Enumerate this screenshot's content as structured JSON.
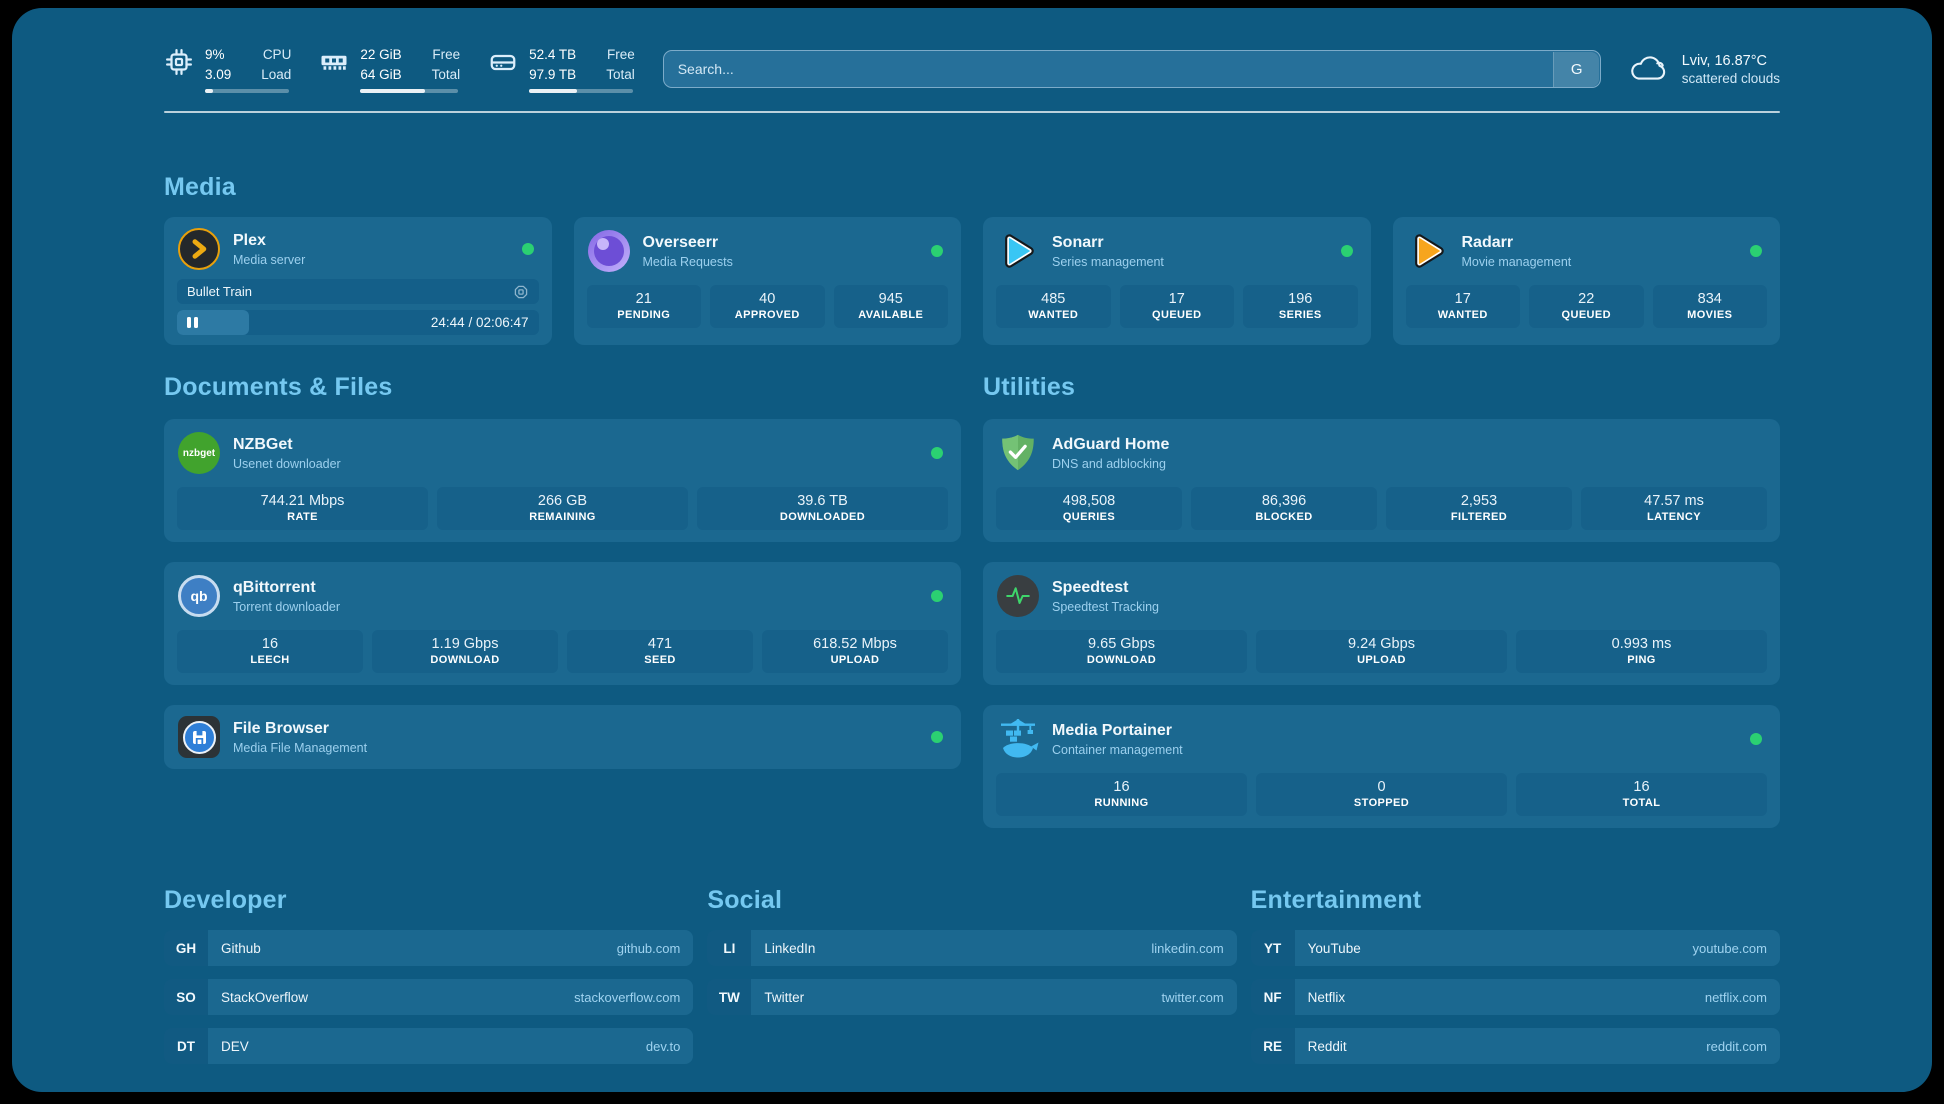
{
  "theme": {
    "background": "#0e5a81",
    "card": "#1b6890",
    "stat_box": "#16618a",
    "accent_title": "#75c8f0",
    "online_dot": "#2bd072"
  },
  "topbar": {
    "stats": [
      {
        "icon": "cpu-icon",
        "values": [
          "9%",
          "3.09"
        ],
        "labels": [
          "CPU",
          "Load"
        ],
        "progress_pct": 9
      },
      {
        "icon": "ram-icon",
        "values": [
          "22 GiB",
          "64 GiB"
        ],
        "labels": [
          "Free",
          "Total"
        ],
        "progress_pct": 66
      },
      {
        "icon": "disk-icon",
        "values": [
          "52.4 TB",
          "97.9 TB"
        ],
        "labels": [
          "Free",
          "Total"
        ],
        "progress_pct": 46
      }
    ],
    "search": {
      "placeholder": "Search...",
      "button_label": "G"
    },
    "weather": {
      "location_temp": "Lviv, 16.87°C",
      "condition": "scattered clouds",
      "icon": "cloud-icon"
    }
  },
  "sections": {
    "media": {
      "title": "Media",
      "cards": {
        "plex": {
          "name": "Plex",
          "subtitle": "Media server",
          "online": true,
          "now_playing": {
            "title": "Bullet Train",
            "time": "24:44 / 02:06:47",
            "progress_pct": 20,
            "state": "paused"
          }
        },
        "overseerr": {
          "name": "Overseerr",
          "subtitle": "Media Requests",
          "online": true,
          "stats": [
            {
              "value": "21",
              "label": "PENDING"
            },
            {
              "value": "40",
              "label": "APPROVED"
            },
            {
              "value": "945",
              "label": "AVAILABLE"
            }
          ]
        },
        "sonarr": {
          "name": "Sonarr",
          "subtitle": "Series management",
          "online": true,
          "stats": [
            {
              "value": "485",
              "label": "WANTED"
            },
            {
              "value": "17",
              "label": "QUEUED"
            },
            {
              "value": "196",
              "label": "SERIES"
            }
          ]
        },
        "radarr": {
          "name": "Radarr",
          "subtitle": "Movie management",
          "online": true,
          "stats": [
            {
              "value": "17",
              "label": "WANTED"
            },
            {
              "value": "22",
              "label": "QUEUED"
            },
            {
              "value": "834",
              "label": "MOVIES"
            }
          ]
        }
      }
    },
    "documents": {
      "title": "Documents & Files",
      "cards": {
        "nzbget": {
          "name": "NZBGet",
          "subtitle": "Usenet downloader",
          "online": true,
          "icon_text": "nzbget",
          "stats": [
            {
              "value": "744.21 Mbps",
              "label": "RATE"
            },
            {
              "value": "266 GB",
              "label": "REMAINING"
            },
            {
              "value": "39.6 TB",
              "label": "DOWNLOADED"
            }
          ]
        },
        "qbittorrent": {
          "name": "qBittorrent",
          "subtitle": "Torrent downloader",
          "online": true,
          "icon_text": "qb",
          "stats": [
            {
              "value": "16",
              "label": "LEECH"
            },
            {
              "value": "1.19 Gbps",
              "label": "DOWNLOAD"
            },
            {
              "value": "471",
              "label": "SEED"
            },
            {
              "value": "618.52 Mbps",
              "label": "UPLOAD"
            }
          ]
        },
        "filebrowser": {
          "name": "File Browser",
          "subtitle": "Media File Management",
          "online": true
        }
      }
    },
    "utilities": {
      "title": "Utilities",
      "cards": {
        "adguard": {
          "name": "AdGuard Home",
          "subtitle": "DNS and adblocking",
          "online": false,
          "stats": [
            {
              "value": "498,508",
              "label": "QUERIES"
            },
            {
              "value": "86,396",
              "label": "BLOCKED"
            },
            {
              "value": "2,953",
              "label": "FILTERED"
            },
            {
              "value": "47.57 ms",
              "label": "LATENCY"
            }
          ]
        },
        "speedtest": {
          "name": "Speedtest",
          "subtitle": "Speedtest Tracking",
          "online": false,
          "stats": [
            {
              "value": "9.65 Gbps",
              "label": "DOWNLOAD"
            },
            {
              "value": "9.24 Gbps",
              "label": "UPLOAD"
            },
            {
              "value": "0.993 ms",
              "label": "PING"
            }
          ]
        },
        "portainer": {
          "name": "Media Portainer",
          "subtitle": "Container management",
          "online": true,
          "stats": [
            {
              "value": "16",
              "label": "RUNNING"
            },
            {
              "value": "0",
              "label": "STOPPED"
            },
            {
              "value": "16",
              "label": "TOTAL"
            }
          ]
        }
      }
    }
  },
  "bookmarks": {
    "developer": {
      "title": "Developer",
      "links": [
        {
          "abbr": "GH",
          "name": "Github",
          "url": "github.com"
        },
        {
          "abbr": "SO",
          "name": "StackOverflow",
          "url": "stackoverflow.com"
        },
        {
          "abbr": "DT",
          "name": "DEV",
          "url": "dev.to"
        }
      ]
    },
    "social": {
      "title": "Social",
      "links": [
        {
          "abbr": "LI",
          "name": "LinkedIn",
          "url": "linkedin.com"
        },
        {
          "abbr": "TW",
          "name": "Twitter",
          "url": "twitter.com"
        }
      ]
    },
    "entertainment": {
      "title": "Entertainment",
      "links": [
        {
          "abbr": "YT",
          "name": "YouTube",
          "url": "youtube.com"
        },
        {
          "abbr": "NF",
          "name": "Netflix",
          "url": "netflix.com"
        },
        {
          "abbr": "RE",
          "name": "Reddit",
          "url": "reddit.com"
        }
      ]
    }
  }
}
